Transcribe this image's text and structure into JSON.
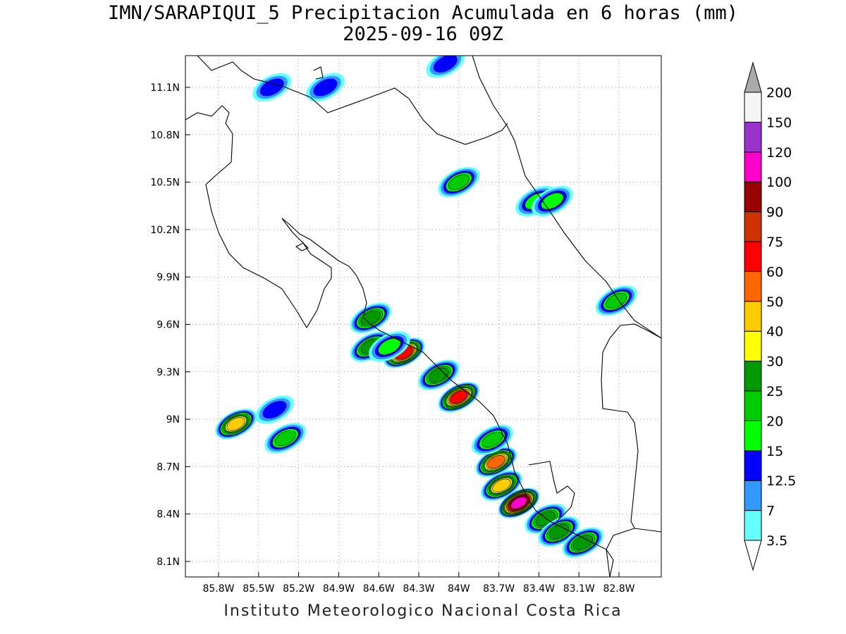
{
  "title_line1": "IMN/SARAPIQUI_5 Precipitacion Acumulada en 6 horas (mm)",
  "title_line2": "2025-09-16 09Z",
  "footer": "Instituto Meteorologico Nacional Costa Rica",
  "x_ticks": [
    "85.8W",
    "85.5W",
    "85.2W",
    "84.9W",
    "84.6W",
    "84.3W",
    "84W",
    "83.7W",
    "83.4W",
    "83.1W",
    "82.8W"
  ],
  "y_ticks": [
    "11.1N",
    "10.8N",
    "10.5N",
    "10.2N",
    "9.9N",
    "9.6N",
    "9.3N",
    "9N",
    "8.7N",
    "8.4N",
    "8.1N"
  ],
  "legend": {
    "levels": [
      "3.5",
      "7",
      "12.5",
      "15",
      "20",
      "25",
      "30",
      "40",
      "50",
      "60",
      "75",
      "90",
      "100",
      "120",
      "150",
      "200"
    ],
    "colors": [
      "#66ffff",
      "#3399ff",
      "#0000ff",
      "#00ff00",
      "#00cc00",
      "#009900",
      "#ffff00",
      "#ffcc00",
      "#ff6600",
      "#ff0000",
      "#cc3300",
      "#990000",
      "#ff00cc",
      "#9933cc",
      "#f5f5f5",
      "#aaaaaa"
    ]
  },
  "precip_cells": [
    {
      "lon": -85.67,
      "lat": 8.97,
      "max": 40
    },
    {
      "lon": -84.41,
      "lat": 9.42,
      "max": 60
    },
    {
      "lon": -84.0,
      "lat": 9.14,
      "max": 60
    },
    {
      "lon": -84.15,
      "lat": 9.28,
      "max": 25
    },
    {
      "lon": -84.66,
      "lat": 9.64,
      "max": 25
    },
    {
      "lon": -84.66,
      "lat": 9.46,
      "max": 25
    },
    {
      "lon": -84.52,
      "lat": 9.46,
      "max": 15
    },
    {
      "lon": -83.72,
      "lat": 8.73,
      "max": 50
    },
    {
      "lon": -83.68,
      "lat": 8.58,
      "max": 40
    },
    {
      "lon": -83.55,
      "lat": 8.47,
      "max": 100
    },
    {
      "lon": -83.35,
      "lat": 8.37,
      "max": 25
    },
    {
      "lon": -83.25,
      "lat": 8.29,
      "max": 25
    },
    {
      "lon": -83.07,
      "lat": 8.22,
      "max": 25
    },
    {
      "lon": -83.75,
      "lat": 8.87,
      "max": 20
    },
    {
      "lon": -84.0,
      "lat": 10.5,
      "max": 20
    },
    {
      "lon": -85.0,
      "lat": 11.1,
      "max": 12.5
    },
    {
      "lon": -85.4,
      "lat": 11.1,
      "max": 12.5
    },
    {
      "lon": -83.42,
      "lat": 10.38,
      "max": 15
    },
    {
      "lon": -83.3,
      "lat": 10.38,
      "max": 15
    },
    {
      "lon": -82.82,
      "lat": 9.75,
      "max": 20
    },
    {
      "lon": -85.3,
      "lat": 8.88,
      "max": 20
    },
    {
      "lon": -85.38,
      "lat": 9.06,
      "max": 12.5
    },
    {
      "lon": -84.1,
      "lat": 11.25,
      "max": 12.5
    }
  ]
}
